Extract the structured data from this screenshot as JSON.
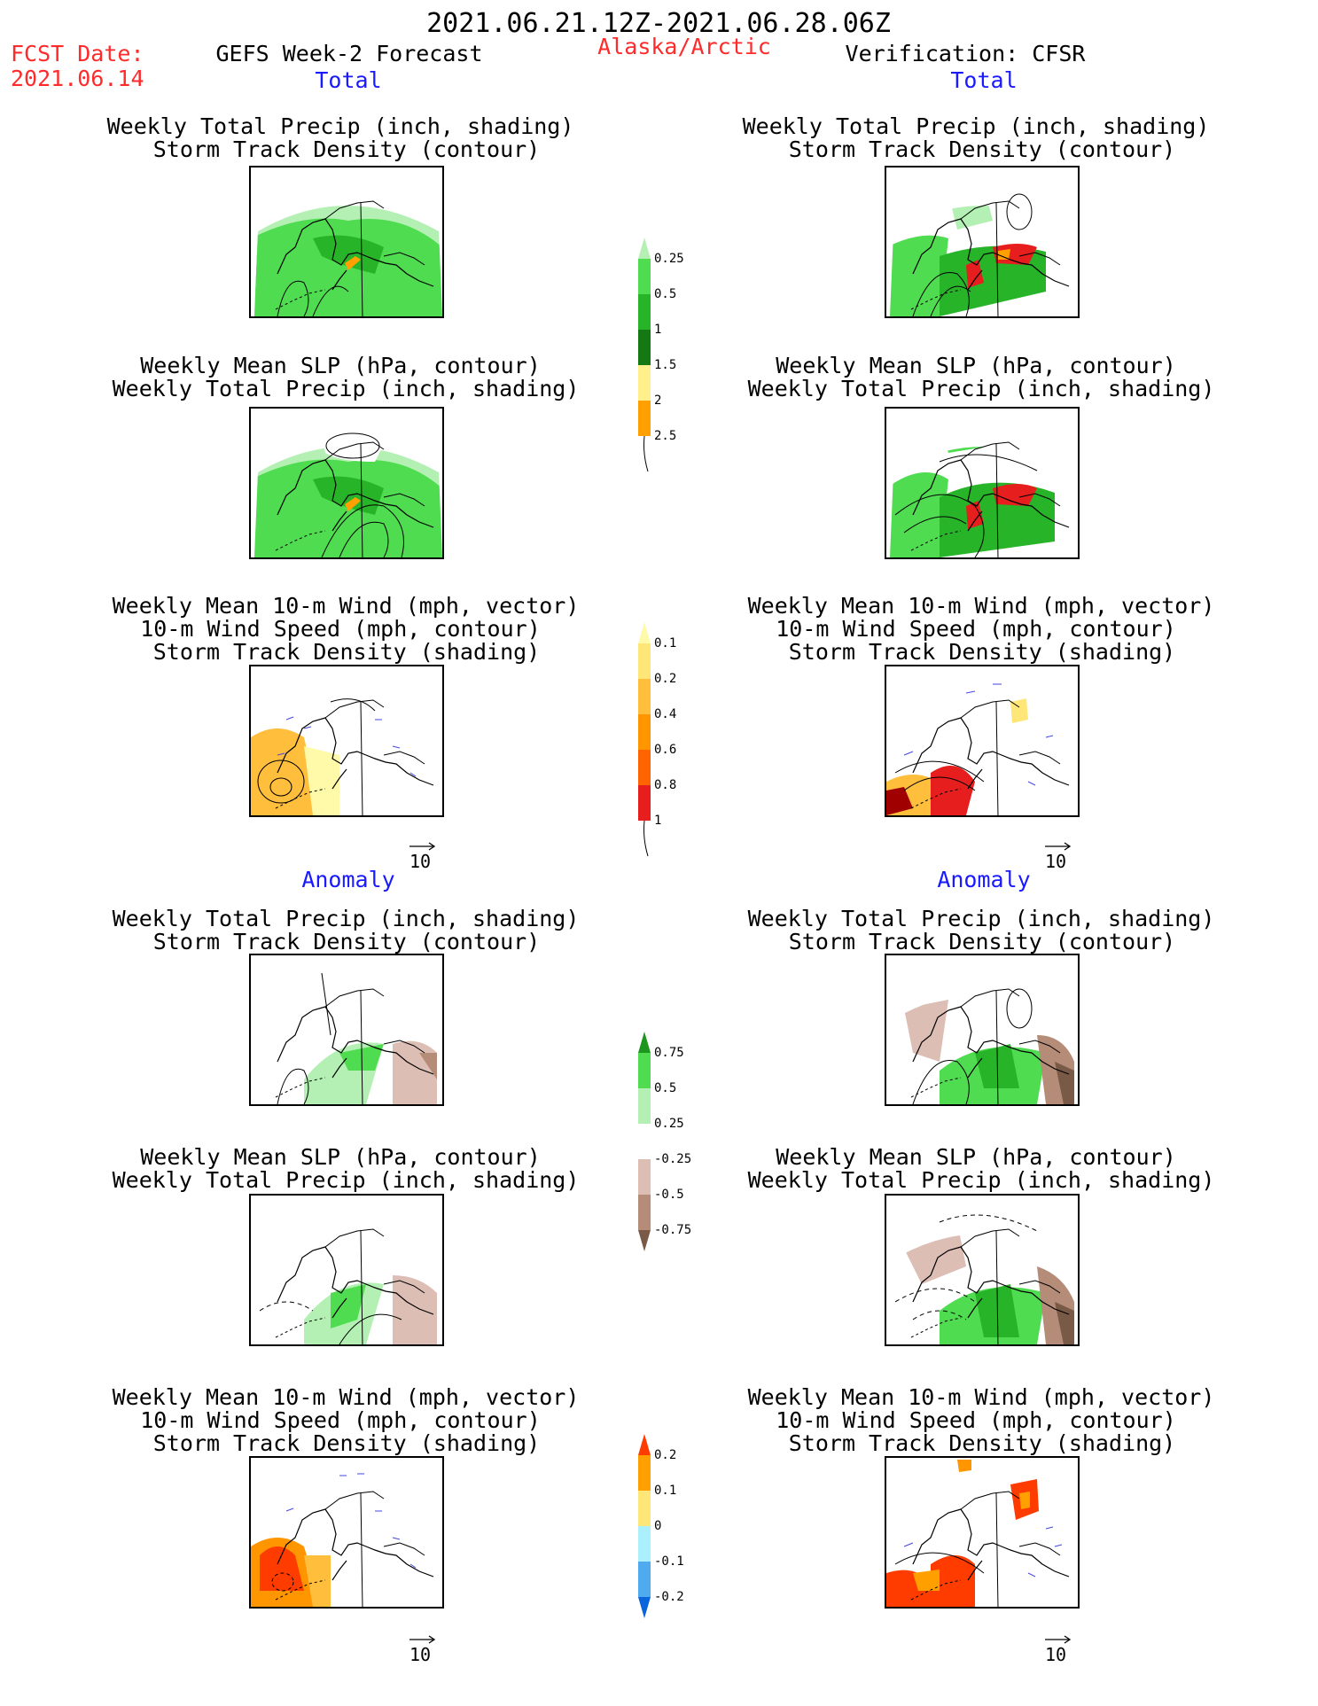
{
  "header": {
    "period": "2021.06.21.12Z-2021.06.28.06Z",
    "fcst_label": "FCST Date:",
    "fcst_date": "2021.06.14",
    "forecast_title": "GEFS Week-2 Forecast",
    "region": "Alaska/Arctic",
    "verification": "Verification: CFSR"
  },
  "sections": {
    "total": "Total",
    "anomaly": "Anomaly"
  },
  "titles": {
    "precip_storm_1": "Weekly Total Precip (inch, shading)",
    "precip_storm_2": "Storm Track Density (contour)",
    "slp_1": "Weekly Mean SLP (hPa, contour)",
    "slp_2": "Weekly Total Precip (inch, shading)",
    "wind_1": "Weekly Mean 10-m Wind (mph, vector)",
    "wind_2": "10-m Wind Speed (mph, contour)",
    "wind_3": "Storm Track Density (shading)"
  },
  "vector_ref": "10",
  "colorbars": {
    "precip_total": {
      "labels": [
        "0.25",
        "0.5",
        "1",
        "1.5",
        "2",
        "2.5"
      ],
      "colors": [
        "#b4f0b4",
        "#50dc50",
        "#28b428",
        "#147814",
        "#fff08c",
        "#ffa000",
        "#e61e1e"
      ]
    },
    "storm_total": {
      "labels": [
        "0.1",
        "0.2",
        "0.4",
        "0.6",
        "0.8",
        "1"
      ],
      "colors": [
        "#fffaaa",
        "#ffe678",
        "#ffbe3c",
        "#ff9600",
        "#ff6400",
        "#e61e1e",
        "#a00000"
      ]
    },
    "precip_anom": {
      "labels": [
        "0.75",
        "0.5",
        "0.25",
        "-0.25",
        "-0.5",
        "-0.75"
      ],
      "colors": [
        "#1e961e",
        "#50dc50",
        "#b4f0b4",
        "#ffffff",
        "#dcbeb4",
        "#b48c78",
        "#785a46"
      ]
    },
    "storm_anom": {
      "labels": [
        "0.2",
        "0.1",
        "0",
        "-0.1",
        "-0.2"
      ],
      "colors": [
        "#ff3c00",
        "#ffa000",
        "#ffe678",
        "#aaf0ff",
        "#50aaf0",
        "#0a64dc"
      ]
    }
  }
}
